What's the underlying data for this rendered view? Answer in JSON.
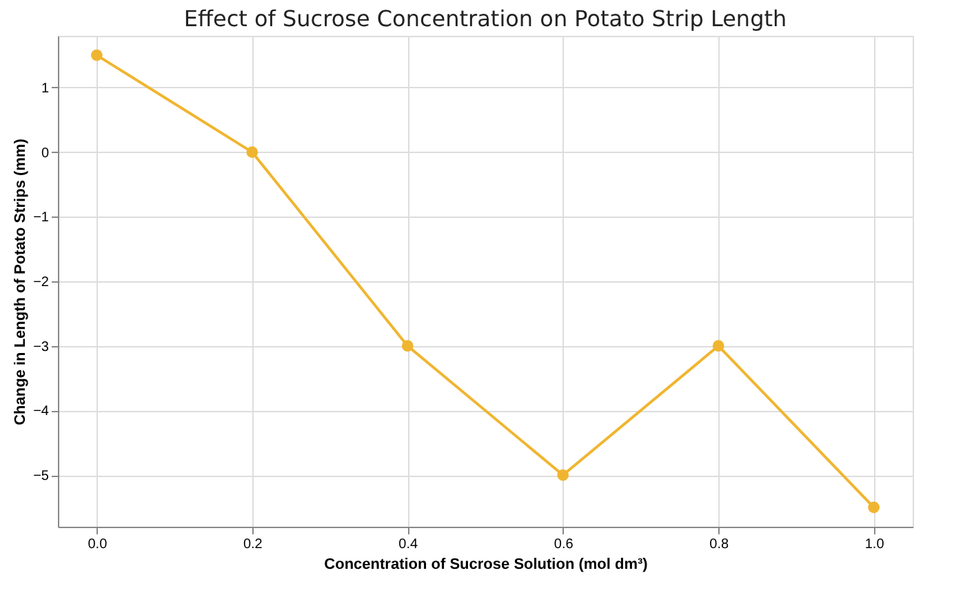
{
  "chart_data": {
    "type": "line",
    "title": "Effect of Sucrose Concentration on Potato Strip Length",
    "xlabel": "Concentration of Sucrose Solution (mol dm³)",
    "ylabel": "Change in Length of Potato Strips (mm)",
    "x": [
      0.0,
      0.2,
      0.4,
      0.6,
      0.8,
      1.0
    ],
    "series": [
      {
        "color": "#f0b530",
        "values": [
          1.5,
          0,
          -3,
          -5,
          -3,
          -5.5
        ]
      }
    ],
    "xlim": [
      -0.05,
      1.05
    ],
    "ylim": [
      -5.8,
      1.8
    ],
    "xticks": [
      {
        "value": 0,
        "label": "0.0"
      },
      0.2,
      0.4,
      0.6,
      0.8,
      {
        "value": 1,
        "label": "1.0"
      }
    ],
    "yticks": [
      -5,
      -4,
      -3,
      -2,
      -1,
      0,
      1
    ],
    "grid": true,
    "marker": "circle",
    "line_style": "solid"
  }
}
